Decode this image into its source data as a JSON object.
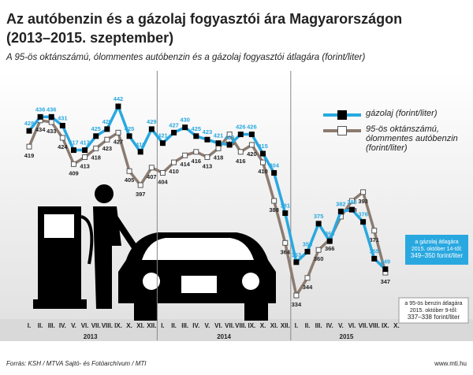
{
  "chart_data": {
    "type": "line",
    "title": [
      "Az autóbenzin és a gázolaj fogyasztói ára Magyarországon",
      "(2013–2015. szeptember)"
    ],
    "subtitle": "A 95-ös oktánszámú, ólommentes autóbenzin és a gázolaj fogyasztói átlagára (forint/liter)",
    "categories": [
      "I.",
      "II.",
      "III.",
      "IV.",
      "V.",
      "VI.",
      "VII.",
      "VIII.",
      "IX.",
      "X.",
      "XI.",
      "XII.",
      "I.",
      "II.",
      "III.",
      "IV.",
      "V.",
      "VI.",
      "VII.",
      "VIII.",
      "IX.",
      "X.",
      "XI.",
      "XII.",
      "I.",
      "II.",
      "III.",
      "IV.",
      "V.",
      "VI.",
      "VII.",
      "VIII.",
      "IX.",
      "X."
    ],
    "years": [
      "2013",
      "2014",
      "2015"
    ],
    "series": [
      {
        "name": "gázolaj (forint/liter)",
        "color": "#29a8e0",
        "values": [
          428,
          436,
          436,
          431,
          417,
          417,
          425,
          429,
          442,
          425,
          416,
          429,
          421,
          427,
          430,
          425,
          423,
          421,
          420,
          426,
          426,
          415,
          404,
          381,
          353,
          359,
          375,
          365,
          382,
          383,
          376,
          355,
          349,
          null
        ]
      },
      {
        "name": "95-ös oktánszámú, ólommentes autóbenzin (forint/liter)",
        "color": "#8c7b70",
        "values": [
          419,
          434,
          433,
          424,
          409,
          413,
          418,
          423,
          427,
          405,
          397,
          407,
          404,
          410,
          414,
          416,
          413,
          418,
          426,
          416,
          420,
          410,
          388,
          364,
          334,
          344,
          360,
          366,
          379,
          388,
          393,
          371,
          347,
          null
        ],
        "value_labels": [
          "419",
          "434",
          "433",
          "424",
          "409",
          "413",
          "418",
          "423",
          "427",
          "405",
          "397",
          "407",
          "404",
          "410",
          "414",
          "416",
          "413",
          "418",
          "426",
          "416",
          "420",
          "410",
          "388",
          "364",
          "334",
          "344",
          "360",
          "366",
          null,
          "388",
          "393",
          "371",
          "347",
          null
        ]
      }
    ],
    "annotations": [
      {
        "lines": [
          "a gázolaj átlagára",
          "2015. október 14-től:",
          "349–350 forint/liter"
        ]
      },
      {
        "lines": [
          "a 95-ös benzin átlagára",
          "2015. október 9-től:",
          "337–338 forint/liter"
        ]
      }
    ],
    "source": "Forrás: KSH / MTVA Sajtó- és Fotóarchívum / MTI",
    "website": "www.mti.hu"
  }
}
